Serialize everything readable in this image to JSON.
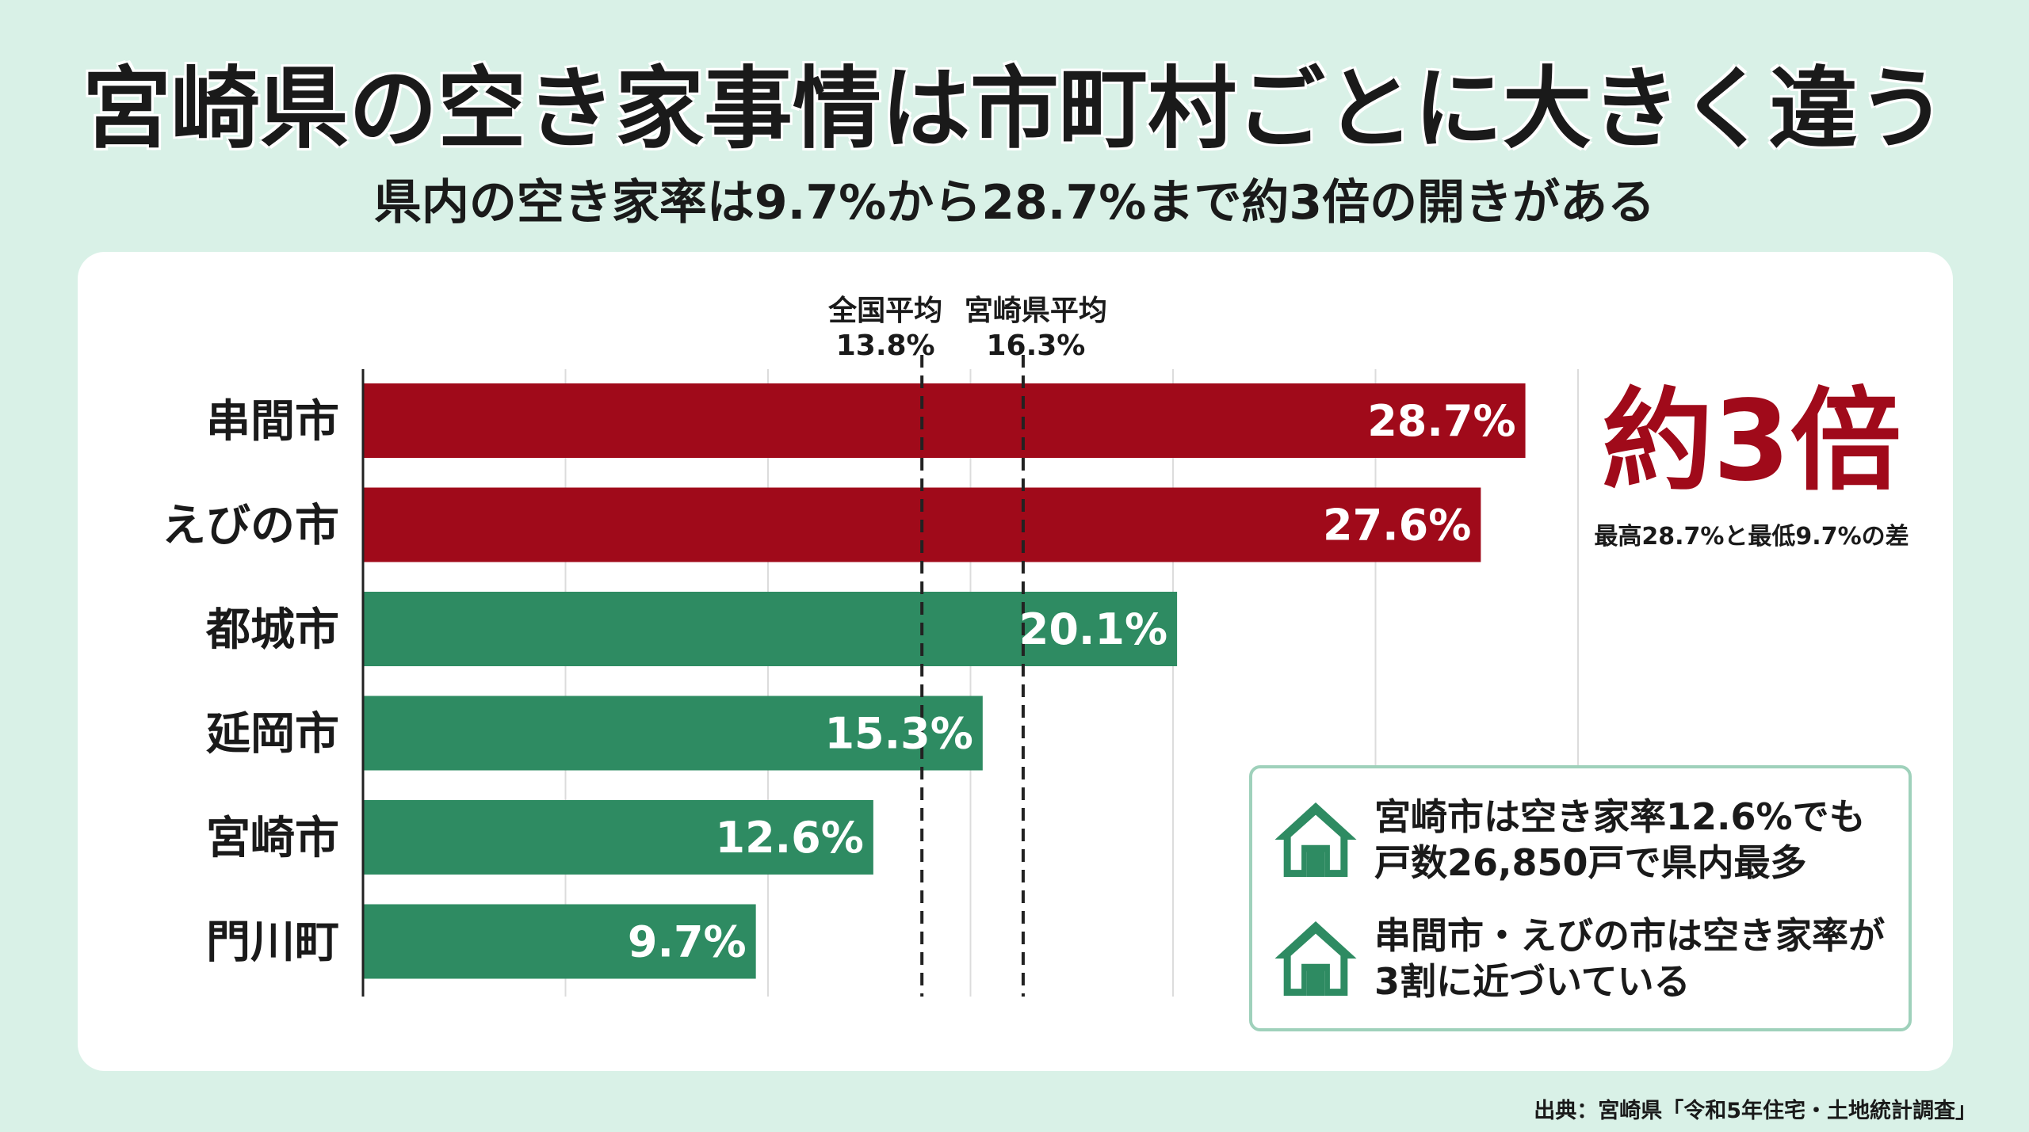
{
  "header": {
    "title": "宮崎県の空き家事情は市町村ごとに大きく違う",
    "subtitle": "県内の空き家率は9.7%から28.7%まで約3倍の開きがある"
  },
  "chart_data": {
    "type": "bar",
    "orientation": "horizontal",
    "categories": [
      "串間市",
      "えびの市",
      "都城市",
      "延岡市",
      "宮崎市",
      "門川町"
    ],
    "values": [
      28.7,
      27.6,
      20.1,
      15.3,
      12.6,
      9.7
    ],
    "value_labels": [
      "28.7%",
      "27.6%",
      "20.1%",
      "15.3%",
      "12.6%",
      "9.7%"
    ],
    "xlim": [
      0,
      30
    ],
    "grid": true,
    "colors": [
      "#a00a1a",
      "#a00a1a",
      "#2e8b62",
      "#2e8b62",
      "#2e8b62",
      "#2e8b62"
    ],
    "reference_lines": [
      {
        "name": "全国平均",
        "label": "13.8%",
        "value": 13.8
      },
      {
        "name": "宮崎県平均",
        "label": "16.3%",
        "value": 16.3
      }
    ]
  },
  "callout": {
    "big": "約3倍",
    "small": "最高28.7%と最低9.7%の差",
    "color": "#a00a1a"
  },
  "notes": [
    {
      "icon": "house-icon",
      "line1": "宮崎市は空き家率12.6%でも",
      "line2": "戸数26,850戸で県内最多"
    },
    {
      "icon": "house-icon",
      "line1": "串間市・えびの市は空き家率が",
      "line2": "3割に近づいている"
    }
  ],
  "source": "出典：宮崎県「令和5年住宅・土地統計調査」",
  "colors": {
    "background": "#d9f1e7",
    "high_bar": "#a00a1a",
    "normal_bar": "#2e8b62",
    "note_border": "#9fd1bb"
  }
}
